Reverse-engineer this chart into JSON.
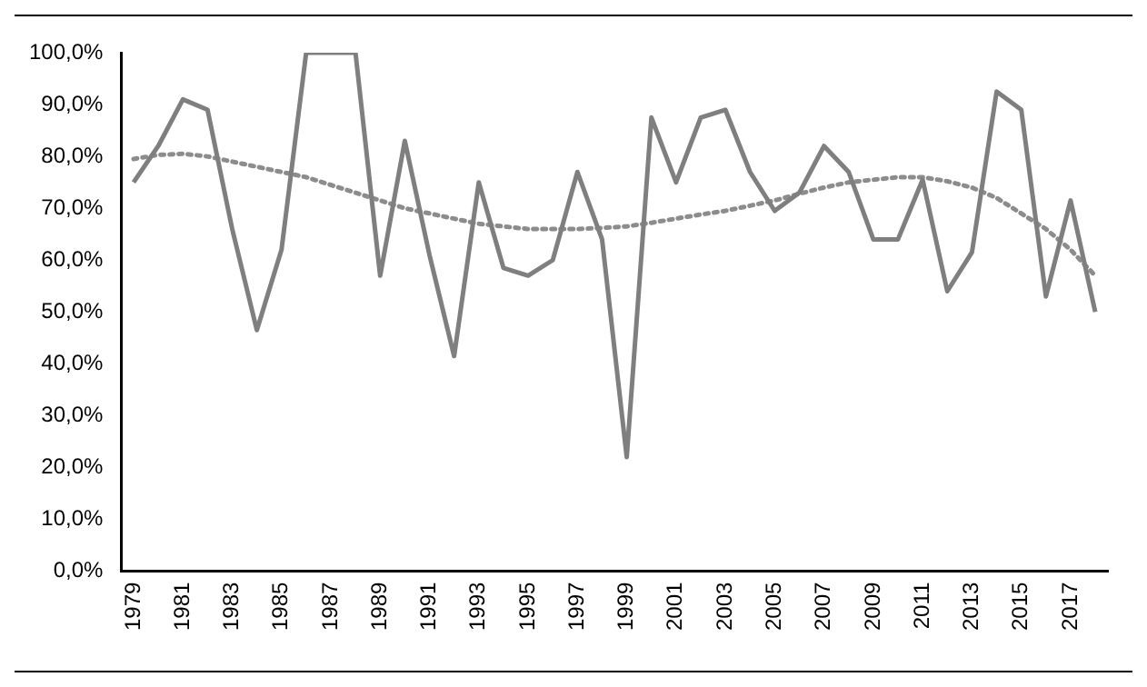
{
  "chart_data": {
    "type": "line",
    "categories": [
      "1979",
      null,
      "1981",
      null,
      "1983",
      null,
      "1985",
      null,
      "1987",
      null,
      "1989",
      null,
      "1991",
      null,
      "1993",
      null,
      "1995",
      null,
      "1997",
      null,
      "1999",
      null,
      "2001",
      null,
      "2003",
      null,
      "2005",
      null,
      "2007",
      null,
      "2009",
      null,
      "2011",
      null,
      "2013",
      null,
      "2015",
      null,
      "2017",
      null
    ],
    "series": [
      {
        "color": "#7f7f7f",
        "line_style": "solid",
        "values": [
          75,
          82,
          91,
          89,
          66,
          46.5,
          62,
          100,
          100,
          100,
          57,
          83,
          61,
          41.5,
          75,
          58.5,
          57,
          60,
          77,
          64,
          22,
          87.5,
          75,
          87.5,
          89,
          77,
          69.5,
          73,
          82,
          77,
          64,
          64,
          75.5,
          54,
          61.5,
          92.5,
          89,
          53,
          71.5,
          50
        ]
      },
      {
        "type": "line",
        "color": "#8c8c8c",
        "line_style": "dotted",
        "values": [
          79.5,
          80.3,
          80.5,
          80,
          79,
          78,
          77,
          76,
          74.5,
          73,
          71.5,
          70,
          69,
          68,
          67,
          66.5,
          66,
          66,
          66,
          66.2,
          66.5,
          67.2,
          68,
          68.8,
          69.5,
          70.5,
          71.5,
          72.8,
          74,
          75,
          75.5,
          76,
          76,
          75.2,
          74,
          72,
          69,
          66,
          62,
          57
        ]
      }
    ],
    "ylim": [
      0,
      100
    ],
    "yticks": [
      {
        "value": 0,
        "label": "0,0%"
      },
      {
        "value": 10,
        "label": "10,0%"
      },
      {
        "value": 20,
        "label": "20,0%"
      },
      {
        "value": 30,
        "label": "30,0%"
      },
      {
        "value": 40,
        "label": "40,0%"
      },
      {
        "value": 50,
        "label": "50,0%"
      },
      {
        "value": 60,
        "label": "60,0%"
      },
      {
        "value": 70,
        "label": "70,0%"
      },
      {
        "value": 80,
        "label": "80,0%"
      },
      {
        "value": 90,
        "label": "90,0%"
      },
      {
        "value": 100,
        "label": "100,0%"
      }
    ],
    "grid": false,
    "legend": false,
    "marker": "none"
  }
}
